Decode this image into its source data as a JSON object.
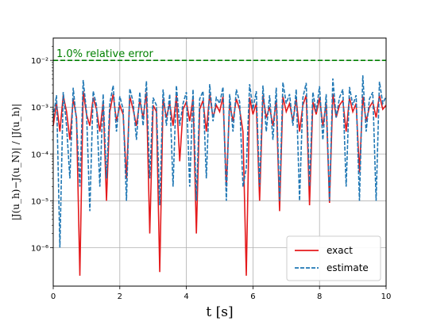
{
  "chart_data": {
    "type": "line",
    "xlabel": "t [s]",
    "ylabel": "|J(u_h)−J(u_N)| / |J(u_h)|",
    "xlim": [
      0,
      10
    ],
    "ylim": [
      1.5e-07,
      0.03
    ],
    "yscale": "log",
    "grid": true,
    "legend_position": "lower-right",
    "x_ticks": [
      "0",
      "2",
      "4",
      "6",
      "8",
      "10"
    ],
    "y_ticks": [
      {
        "value": 1e-06,
        "label": "10⁻⁶"
      },
      {
        "value": 1e-05,
        "label": "10⁻⁵"
      },
      {
        "value": 0.0001,
        "label": "10⁻⁴"
      },
      {
        "value": 0.001,
        "label": "10⁻³"
      },
      {
        "value": 0.01,
        "label": "10⁻²"
      }
    ],
    "reference_line": {
      "y": 0.01,
      "label": "1.0% relative error",
      "color": "#008000",
      "style": "dashed"
    },
    "series": [
      {
        "name": "exact",
        "color": "#e41a1c",
        "style": "solid",
        "x": [
          0.0,
          0.1,
          0.2,
          0.3,
          0.4,
          0.5,
          0.6,
          0.7,
          0.8,
          0.9,
          1.0,
          1.1,
          1.2,
          1.3,
          1.4,
          1.5,
          1.6,
          1.7,
          1.8,
          1.9,
          2.0,
          2.1,
          2.2,
          2.3,
          2.4,
          2.5,
          2.6,
          2.7,
          2.8,
          2.9,
          3.0,
          3.1,
          3.2,
          3.3,
          3.4,
          3.5,
          3.6,
          3.7,
          3.8,
          3.9,
          4.0,
          4.1,
          4.2,
          4.3,
          4.4,
          4.5,
          4.6,
          4.7,
          4.8,
          4.9,
          5.0,
          5.1,
          5.2,
          5.3,
          5.4,
          5.5,
          5.6,
          5.7,
          5.8,
          5.9,
          6.0,
          6.1,
          6.2,
          6.3,
          6.4,
          6.5,
          6.6,
          6.7,
          6.8,
          6.9,
          7.0,
          7.1,
          7.2,
          7.3,
          7.4,
          7.5,
          7.6,
          7.7,
          7.8,
          7.9,
          8.0,
          8.1,
          8.2,
          8.3,
          8.4,
          8.5,
          8.6,
          8.7,
          8.8,
          8.9,
          9.0,
          9.1,
          9.2,
          9.3,
          9.4,
          9.5,
          9.6,
          9.7,
          9.8,
          9.9,
          10.0
        ],
        "y": [
          0.0004,
          0.0012,
          0.0003,
          0.0018,
          0.0008,
          0.0002,
          0.0015,
          0.0006,
          2.5e-07,
          0.0022,
          0.0007,
          0.0004,
          0.0016,
          0.0009,
          0.0003,
          0.0013,
          1e-05,
          0.0008,
          0.0019,
          0.0005,
          0.0011,
          0.0007,
          3e-05,
          0.0017,
          0.0009,
          0.0004,
          0.0014,
          0.0006,
          0.0021,
          2e-06,
          0.0011,
          0.0008,
          3e-07,
          0.0015,
          0.0006,
          0.0012,
          0.0004,
          0.0018,
          7e-05,
          0.0009,
          0.0013,
          0.0005,
          0.0016,
          2e-06,
          0.0009,
          0.0014,
          0.0003,
          0.0019,
          0.0006,
          0.0011,
          0.0008,
          0.0017,
          2e-05,
          0.0012,
          0.0005,
          0.0015,
          0.0009,
          0.0003,
          2.5e-07,
          0.0016,
          0.0007,
          0.0012,
          1e-05,
          0.0018,
          0.0006,
          0.001,
          0.0004,
          0.0014,
          6e-06,
          0.0017,
          0.0008,
          0.0012,
          0.0005,
          0.0015,
          0.0003,
          0.0011,
          0.0018,
          8e-06,
          0.0013,
          0.0007,
          0.0016,
          0.0004,
          0.0012,
          9e-06,
          0.0019,
          0.0006,
          0.0011,
          0.0014,
          0.0003,
          0.0016,
          0.0008,
          0.0012,
          4e-05,
          0.0017,
          0.0005,
          0.001,
          0.0013,
          0.0006,
          0.0018,
          0.0009,
          0.0011
        ]
      },
      {
        "name": "estimate",
        "color": "#1f77b4",
        "style": "dashed",
        "x": [
          0.0,
          0.1,
          0.2,
          0.3,
          0.4,
          0.5,
          0.6,
          0.7,
          0.8,
          0.9,
          1.0,
          1.1,
          1.2,
          1.3,
          1.4,
          1.5,
          1.6,
          1.7,
          1.8,
          1.9,
          2.0,
          2.1,
          2.2,
          2.3,
          2.4,
          2.5,
          2.6,
          2.7,
          2.8,
          2.9,
          3.0,
          3.1,
          3.2,
          3.3,
          3.4,
          3.5,
          3.6,
          3.7,
          3.8,
          3.9,
          4.0,
          4.1,
          4.2,
          4.3,
          4.4,
          4.5,
          4.6,
          4.7,
          4.8,
          4.9,
          5.0,
          5.1,
          5.2,
          5.3,
          5.4,
          5.5,
          5.6,
          5.7,
          5.8,
          5.9,
          6.0,
          6.1,
          6.2,
          6.3,
          6.4,
          6.5,
          6.6,
          6.7,
          6.8,
          6.9,
          7.0,
          7.1,
          7.2,
          7.3,
          7.4,
          7.5,
          7.6,
          7.7,
          7.8,
          7.9,
          8.0,
          8.1,
          8.2,
          8.3,
          8.4,
          8.5,
          8.6,
          8.7,
          8.8,
          8.9,
          9.0,
          9.1,
          9.2,
          9.3,
          9.4,
          9.5,
          9.6,
          9.7,
          9.8,
          9.9,
          10.0
        ],
        "y": [
          0.0006,
          0.0018,
          1e-06,
          0.0021,
          0.0004,
          3e-05,
          0.0026,
          0.0005,
          2e-05,
          0.0038,
          0.0008,
          6e-06,
          0.0022,
          0.0011,
          2e-05,
          0.0019,
          3e-05,
          0.0012,
          0.0029,
          0.0003,
          0.0017,
          0.0009,
          1e-05,
          0.0025,
          0.0013,
          0.0002,
          0.0021,
          0.0004,
          0.0036,
          3e-05,
          0.0016,
          0.0011,
          8e-06,
          0.0024,
          0.0004,
          0.0019,
          2e-05,
          0.0029,
          0.0004,
          0.0012,
          0.0021,
          2e-05,
          0.0024,
          1e-05,
          0.0015,
          0.0022,
          3e-05,
          0.0031,
          0.0005,
          0.0016,
          0.0012,
          0.0027,
          1e-05,
          0.0019,
          0.0003,
          0.0024,
          0.0013,
          2e-05,
          5e-05,
          0.0031,
          0.0009,
          0.0022,
          2e-05,
          0.0029,
          0.0003,
          0.0018,
          0.0002,
          0.0026,
          1e-05,
          0.0034,
          0.0012,
          0.0019,
          0.0004,
          0.0024,
          1e-05,
          0.0016,
          0.0033,
          2e-05,
          0.0021,
          0.0008,
          0.0028,
          0.0002,
          0.0019,
          1e-05,
          0.0041,
          0.0006,
          0.0016,
          0.0024,
          2e-05,
          0.0027,
          0.0011,
          0.0018,
          1e-05,
          0.0048,
          0.0003,
          0.0015,
          0.0021,
          1e-05,
          0.0035,
          0.0012,
          0.0017
        ]
      }
    ]
  }
}
